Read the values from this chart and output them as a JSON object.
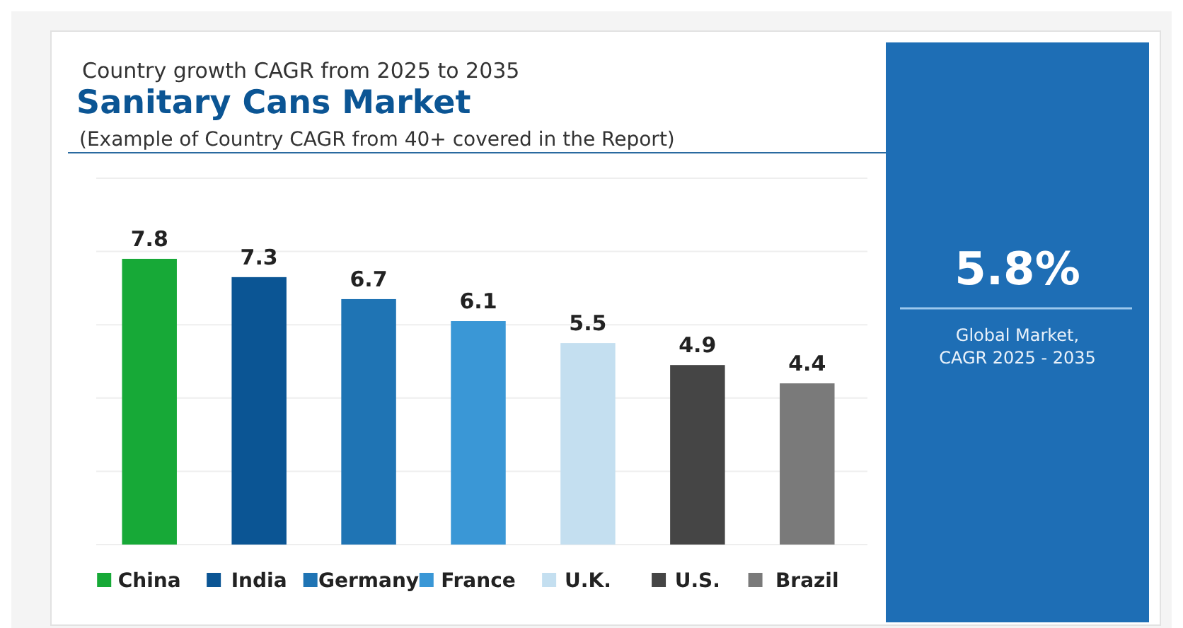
{
  "chart_data": [
    {
      "type": "bar",
      "subtitle": "Country growth CAGR from 2025 to 2035",
      "title": "Sanitary Cans Market",
      "annotations": [
        "(Example of Country CAGR from 40+ covered in the Report)"
      ],
      "categories": [
        "China",
        "India",
        "Germany",
        "France",
        "U.K.",
        "U.S.",
        "Brazil"
      ],
      "values": [
        7.8,
        7.3,
        6.7,
        6.1,
        5.5,
        4.9,
        4.4
      ],
      "colors": [
        "#17a937",
        "#0b5594",
        "#1f74b4",
        "#3a97d6",
        "#c4dff0",
        "#454545",
        "#7a7a7a"
      ],
      "ylim": [
        0,
        10
      ],
      "yticks": [
        {
          "value": 0,
          "label": null
        },
        {
          "value": 2,
          "label": null
        },
        {
          "value": 4,
          "label": null
        },
        {
          "value": 6,
          "label": null
        },
        {
          "value": 8,
          "label": null
        },
        {
          "value": 10,
          "label": null
        }
      ],
      "grid": "y",
      "data_labels": true
    },
    {
      "type": "other",
      "title": "5.8%",
      "subtitle": "Global Market, CAGR 2025 - 2035"
    }
  ]
}
